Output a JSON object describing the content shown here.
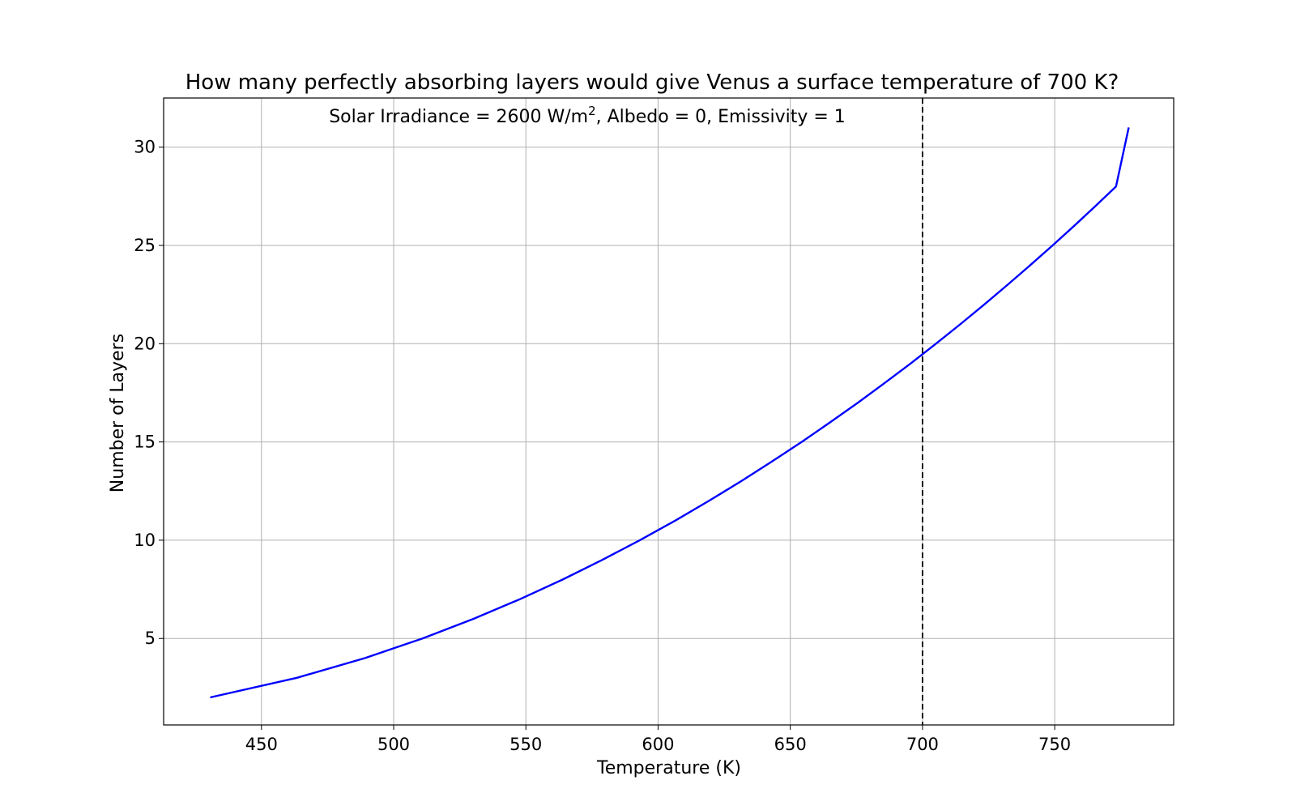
{
  "chart_data": {
    "type": "line",
    "title": "How many perfectly absorbing layers would give Venus a surface temperature of 700 K?",
    "annotation": {
      "prefix": "Solar Irradiance = 2600 W/m",
      "superscript": "2",
      "suffix": ", Albedo = 0, Emissivity = 1"
    },
    "xlabel": "Temperature (K)",
    "ylabel": "Number of Layers",
    "xlim": [
      413,
      795
    ],
    "ylim": [
      0.6,
      32.5
    ],
    "xticks": [
      450,
      500,
      550,
      600,
      650,
      700,
      750
    ],
    "yticks": [
      5,
      10,
      15,
      20,
      25,
      30
    ],
    "grid": true,
    "vline": {
      "x": 700,
      "style": "dashed",
      "color": "#000000"
    },
    "series": [
      {
        "color": "#0000ff",
        "x": [
          430.6,
          463.4,
          489.1,
          510.9,
          530.2,
          547.8,
          563.9,
          578.9,
          593.1,
          606.5,
          619.2,
          631.4,
          643.0,
          654.3,
          665.1,
          675.6,
          685.7,
          695.6,
          705.1,
          714.4,
          723.4,
          732.2,
          740.8,
          749.2,
          757.4,
          765.4,
          773.2,
          778.0
        ],
        "y": [
          2,
          3,
          4,
          5,
          6,
          7,
          8,
          9,
          10,
          11,
          12,
          13,
          14,
          15,
          16,
          17,
          18,
          19,
          20,
          21,
          22,
          23,
          24,
          25,
          26,
          27,
          28,
          31
        ]
      }
    ]
  }
}
